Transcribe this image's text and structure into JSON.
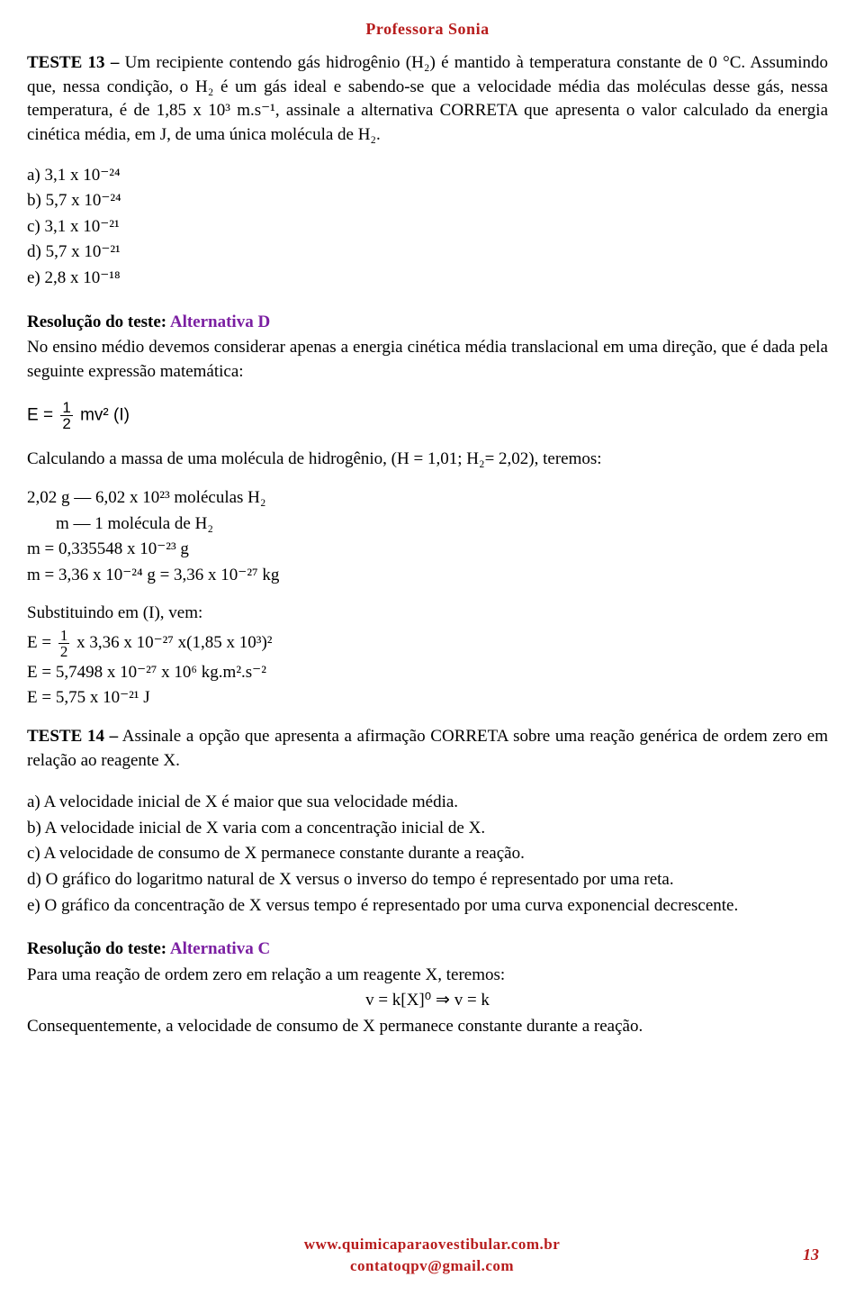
{
  "header": "Professora Sonia",
  "teste13": {
    "label": "TESTE 13 –",
    "text": " Um recipiente contendo gás hidrogênio (H₂) é mantido à temperatura constante de 0 °C. Assumindo que, nessa condição, o H₂ é um gás ideal e sabendo-se que a velocidade média das moléculas desse gás, nessa temperatura, é de 1,85 x 10³ m.s⁻¹, assinale a alternativa CORRETA que apresenta o valor calculado da energia cinética média, em J, de uma única molécula de H₂."
  },
  "options13": {
    "a": "a) 3,1 x 10⁻²⁴",
    "b": "b) 5,7 x 10⁻²⁴",
    "c": "c) 3,1 x 10⁻²¹",
    "d": "d) 5,7 x 10⁻²¹",
    "e": "e) 2,8 x 10⁻¹⁸"
  },
  "resolution13": {
    "titlePrefix": "Resolução do teste: ",
    "titleAlt": "Alternativa D",
    "text1": "No ensino médio devemos considerar apenas a energia cinética média translacional em uma direção, que é dada pela seguinte expressão matemática:",
    "formulaE": "E",
    "formulaEq": "=",
    "formulaFracNum": "1",
    "formulaFracDen": "2",
    "formulaMv": "mv²  (I)",
    "calc1": "Calculando a massa de uma molécula de hidrogênio, (H = 1,01; H₂= 2,02), teremos:",
    "calc2a": "2,02 g — 6,02 x 10²³ moléculas H₂",
    "calc2b": "m — 1 molécula de H₂",
    "calc2c": "m = 0,335548 x 10⁻²³ g",
    "calc2d": "m = 3,36 x 10⁻²⁴ g = 3,36 x 10⁻²⁷ kg",
    "sub1": "Substituindo em (I), vem:",
    "sub2pre": "E = ",
    "sub2post": " x 3,36 x 10⁻²⁷ x(1,85 x 10³)²",
    "sub3": "E = 5,7498 x 10⁻²⁷ x 10⁶ kg.m².s⁻²",
    "sub4": "E = 5,75 x 10⁻²¹ J"
  },
  "teste14": {
    "label": "TESTE 14 –",
    "text": " Assinale a opção que apresenta a afirmação CORRETA sobre uma reação genérica de ordem zero em relação ao reagente X."
  },
  "options14": {
    "a": "a) A velocidade inicial de X é maior que sua velocidade média.",
    "b": "b) A velocidade inicial de X varia com a concentração inicial de X.",
    "c": "c) A velocidade de consumo de X permanece constante durante a reação.",
    "d": "d) O gráfico do logaritmo natural de X versus o inverso do tempo é representado por uma reta.",
    "e": "e) O gráfico da concentração de X versus tempo é representado por uma curva exponencial decrescente."
  },
  "resolution14": {
    "titlePrefix": "Resolução do teste: ",
    "titleAlt": "Alternativa C",
    "text1": "Para uma reação de ordem zero em relação a um reagente X, teremos:",
    "eq": "v = k[X]⁰ ⇒ v = k",
    "text2": "Consequentemente, a velocidade de consumo de X permanece constante durante a reação."
  },
  "footer": {
    "line1": "www.quimicaparaovestibular.com.br",
    "line2": "contatoqpv@gmail.com"
  },
  "pageNum": "13",
  "colors": {
    "accent": "#b71c1c",
    "altColor": "#7b1fa2",
    "text": "#000000",
    "background": "#ffffff"
  }
}
